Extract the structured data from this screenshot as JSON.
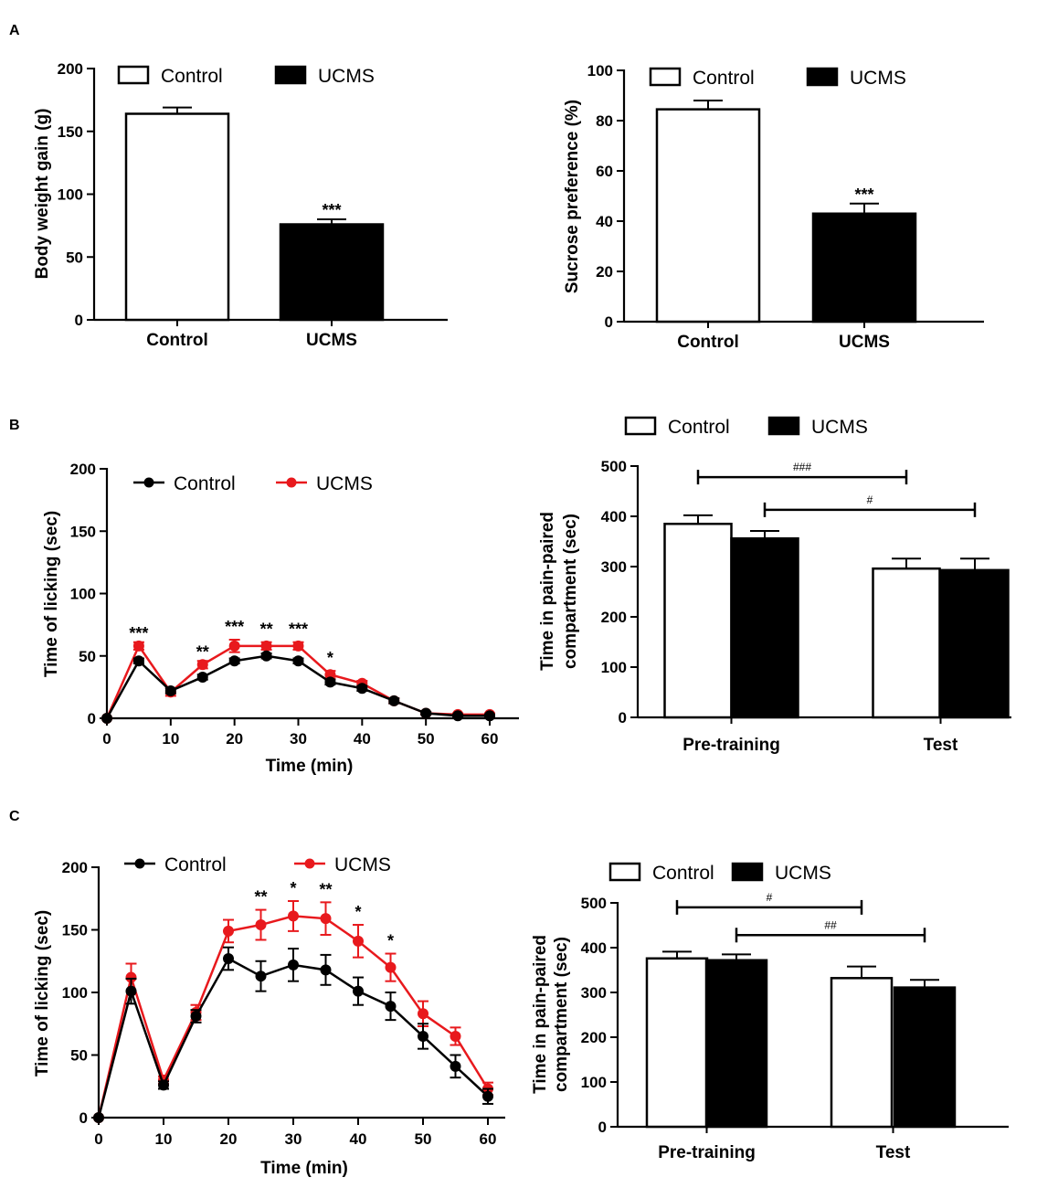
{
  "panel_labels": {
    "a": "A",
    "b": "B",
    "c": "C"
  },
  "colors": {
    "control": "#000000",
    "ucms": "#e8191d"
  },
  "chart_data": [
    {
      "id": "a1",
      "type": "bar",
      "ylabel": "Body weight gain (g)",
      "ylim": [
        0,
        200
      ],
      "yticks": [
        0,
        50,
        100,
        150,
        200
      ],
      "categories": [
        "Control",
        "UCMS"
      ],
      "values": [
        164,
        76
      ],
      "errors": [
        5,
        4
      ],
      "fills": [
        "white",
        "black"
      ],
      "legend": [
        "Control",
        "UCMS"
      ],
      "annotations": [
        {
          "group": 1,
          "text": "***"
        }
      ]
    },
    {
      "id": "a2",
      "type": "bar",
      "ylabel": "Sucrose preference (%)",
      "ylim": [
        0,
        100
      ],
      "yticks": [
        0,
        20,
        40,
        60,
        80,
        100
      ],
      "categories": [
        "Control",
        "UCMS"
      ],
      "values": [
        84.5,
        43
      ],
      "errors": [
        3.5,
        4
      ],
      "fills": [
        "white",
        "black"
      ],
      "legend": [
        "Control",
        "UCMS"
      ],
      "annotations": [
        {
          "group": 1,
          "text": "***"
        }
      ]
    },
    {
      "id": "b1",
      "type": "line",
      "xlabel": "Time (min)",
      "ylabel": "Time of licking (sec)",
      "ylim": [
        0,
        200
      ],
      "yticks": [
        0,
        50,
        100,
        150,
        200
      ],
      "xlim": [
        0,
        60
      ],
      "xticks": [
        0,
        10,
        20,
        30,
        40,
        50,
        60
      ],
      "x": [
        0,
        5,
        10,
        15,
        20,
        25,
        30,
        35,
        40,
        45,
        50,
        55,
        60
      ],
      "series": [
        {
          "name": "Control",
          "values": [
            0,
            46,
            22,
            33,
            46,
            50,
            46,
            29,
            24,
            14,
            4,
            2,
            2
          ],
          "errors": [
            0,
            2,
            2,
            2,
            2,
            2,
            2,
            2,
            2,
            2,
            1,
            1,
            1
          ]
        },
        {
          "name": "UCMS",
          "values": [
            0,
            58,
            21,
            43,
            58,
            58,
            58,
            35,
            28,
            14,
            4,
            3,
            3
          ],
          "errors": [
            0,
            3,
            3,
            3,
            5,
            3,
            3,
            3,
            2,
            2,
            1,
            1,
            1
          ]
        }
      ],
      "annotations": [
        {
          "x": 5,
          "y": 58,
          "text": "***"
        },
        {
          "x": 15,
          "y": 43,
          "text": "**"
        },
        {
          "x": 20,
          "y": 63,
          "text": "***"
        },
        {
          "x": 25,
          "y": 61,
          "text": "**"
        },
        {
          "x": 30,
          "y": 61,
          "text": "***"
        },
        {
          "x": 35,
          "y": 38,
          "text": "*"
        }
      ]
    },
    {
      "id": "b2",
      "type": "bar",
      "ylabel": "Time in pain-paired compartment (sec)",
      "ylabel_lines": [
        "Time in pain-paired",
        "compartment (sec)"
      ],
      "ylim": [
        0,
        500
      ],
      "yticks": [
        0,
        100,
        200,
        300,
        400,
        500
      ],
      "categories": [
        "Pre-training",
        "Test"
      ],
      "series": [
        {
          "name": "Control",
          "values": [
            385,
            296
          ],
          "errors": [
            17,
            20
          ]
        },
        {
          "name": "UCMS",
          "values": [
            356,
            293
          ],
          "errors": [
            15,
            23
          ]
        }
      ],
      "legend": [
        "Control",
        "UCMS"
      ],
      "brackets": [
        {
          "from": [
            0,
            0
          ],
          "to": [
            1,
            0
          ],
          "y": 478,
          "text": "###"
        },
        {
          "from": [
            0,
            1
          ],
          "to": [
            1,
            1
          ],
          "y": 413,
          "text": "#"
        }
      ]
    },
    {
      "id": "c1",
      "type": "line",
      "xlabel": "Time (min)",
      "ylabel": "Time of licking (sec)",
      "ylim": [
        0,
        200
      ],
      "yticks": [
        0,
        50,
        100,
        150,
        200
      ],
      "xlim": [
        0,
        60
      ],
      "xticks": [
        0,
        10,
        20,
        30,
        40,
        50,
        60
      ],
      "x": [
        0,
        5,
        10,
        15,
        20,
        25,
        30,
        35,
        40,
        45,
        50,
        55,
        60
      ],
      "series": [
        {
          "name": "Control",
          "values": [
            0,
            101,
            26,
            81,
            127,
            113,
            122,
            118,
            101,
            89,
            65,
            41,
            17
          ],
          "errors": [
            0,
            10,
            3,
            5,
            9,
            12,
            13,
            12,
            11,
            11,
            10,
            9,
            6
          ]
        },
        {
          "name": "UCMS",
          "values": [
            0,
            112,
            30,
            84,
            149,
            154,
            161,
            159,
            141,
            120,
            83,
            65,
            23
          ],
          "errors": [
            0,
            11,
            3,
            6,
            9,
            12,
            12,
            13,
            13,
            11,
            10,
            7,
            5
          ]
        }
      ],
      "annotations": [
        {
          "x": 25,
          "y": 166,
          "text": "**"
        },
        {
          "x": 30,
          "y": 173,
          "text": "*"
        },
        {
          "x": 35,
          "y": 172,
          "text": "**"
        },
        {
          "x": 40,
          "y": 154,
          "text": "*"
        },
        {
          "x": 45,
          "y": 131,
          "text": "*"
        }
      ]
    },
    {
      "id": "c2",
      "type": "bar",
      "ylabel": "Time in pain-paired compartment (sec)",
      "ylabel_lines": [
        "Time in pain-paired",
        "compartment (sec)"
      ],
      "ylim": [
        0,
        500
      ],
      "yticks": [
        0,
        100,
        200,
        300,
        400,
        500
      ],
      "categories": [
        "Pre-training",
        "Test"
      ],
      "series": [
        {
          "name": "Control",
          "values": [
            376,
            332
          ],
          "errors": [
            15,
            26
          ]
        },
        {
          "name": "UCMS",
          "values": [
            372,
            311
          ],
          "errors": [
            13,
            17
          ]
        }
      ],
      "legend": [
        "Control",
        "UCMS"
      ],
      "brackets": [
        {
          "from": [
            0,
            0
          ],
          "to": [
            1,
            0
          ],
          "y": 490,
          "text": "#"
        },
        {
          "from": [
            0,
            1
          ],
          "to": [
            1,
            1
          ],
          "y": 428,
          "text": "##"
        }
      ]
    }
  ]
}
